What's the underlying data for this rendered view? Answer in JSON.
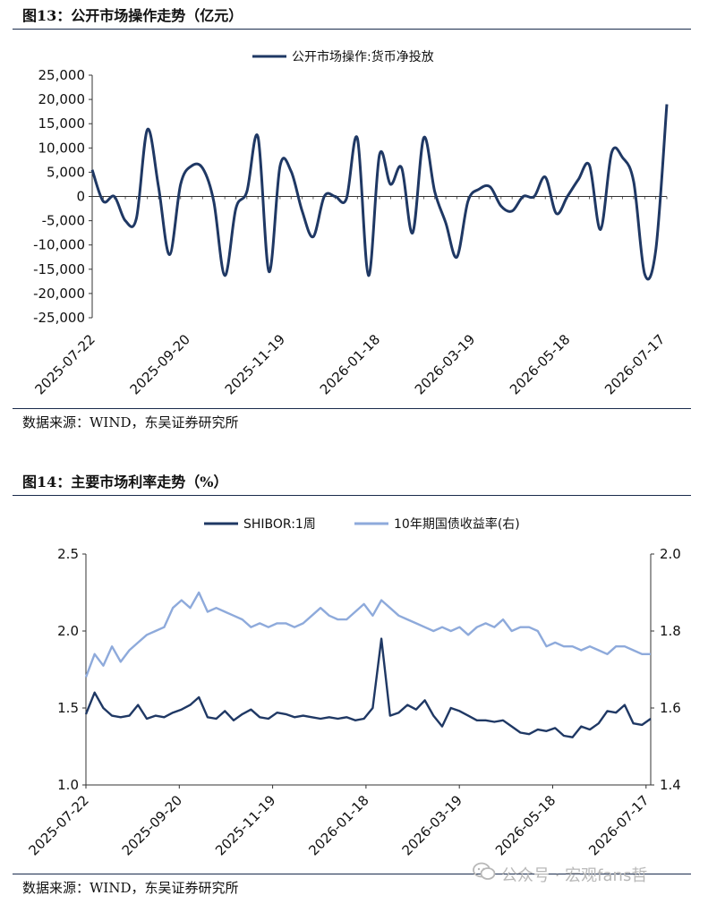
{
  "fig13": {
    "title": "图13：公开市场操作走势（亿元）",
    "source": "数据来源：WIND，东吴证券研究所"
  },
  "fig14": {
    "title": "图14：主要市场利率走势（%）",
    "source": "数据来源：WIND，东吴证券研究所"
  },
  "watermark": {
    "text": "公众号 · 宏观fans哲",
    "icon": "wechat-icon",
    "color": "#b8b8b8"
  },
  "colors": {
    "dark_navy": "#1f3864",
    "light_blue": "#8eaadb",
    "rule": "#1a2b4c"
  },
  "chart_data": [
    {
      "type": "line",
      "xlabel": "",
      "ylabel": "",
      "x_ticks": [
        "2025-07-22",
        "2025-09-20",
        "2025-11-19",
        "2026-01-18",
        "2026-03-19",
        "2026-05-18",
        "2026-07-17"
      ],
      "ylim": [
        -25000,
        25000
      ],
      "y_ticks": [
        -25000,
        -20000,
        -15000,
        -10000,
        -5000,
        0,
        5000,
        10000,
        15000,
        20000,
        25000
      ],
      "y_tick_labels": [
        "-25,000",
        "-20,000",
        "-15,000",
        "-10,000",
        "-5,000",
        "0",
        "5,000",
        "10,000",
        "15,000",
        "20,000",
        "25,000"
      ],
      "legend": "top-center",
      "series": [
        {
          "name": "公开市场操作:货币净投放",
          "color": "#1f3864",
          "x_start": "2025-07-22",
          "x_end": "2026-07-20",
          "values": [
            5500,
            -1000,
            0,
            -5000,
            -4500,
            13800,
            2000,
            -12000,
            2500,
            6300,
            5800,
            -1000,
            -16300,
            -2500,
            1000,
            12300,
            -15500,
            6300,
            5200,
            -3000,
            -8300,
            0,
            0,
            -500,
            12000,
            -16300,
            8600,
            2500,
            5900,
            -7500,
            12100,
            1000,
            -5500,
            -12500,
            -1000,
            1500,
            2000,
            -2000,
            -3000,
            0,
            0,
            4000,
            -3500,
            0,
            3500,
            6400,
            -6800,
            9000,
            8000,
            3000,
            -16000,
            -11000,
            19000
          ]
        }
      ]
    },
    {
      "type": "line",
      "xlabel": "",
      "ylabel": "",
      "x_ticks": [
        "2025-07-22",
        "2025-09-20",
        "2025-11-19",
        "2026-01-18",
        "2026-03-19",
        "2026-05-18",
        "2026-07-17"
      ],
      "ylim": [
        1.0,
        2.5
      ],
      "y_ticks": [
        1.0,
        1.5,
        2.0,
        2.5
      ],
      "y_tick_labels": [
        "1.0",
        "1.5",
        "2.0",
        "2.5"
      ],
      "y2lim": [
        1.4,
        2.0
      ],
      "y2_ticks": [
        1.4,
        1.6,
        1.8,
        2.0
      ],
      "y2_tick_labels": [
        "1.4",
        "1.6",
        "1.8",
        "2.0"
      ],
      "legend": "top-center",
      "series": [
        {
          "name": "SHIBOR:1周",
          "axis": "left",
          "color": "#1f3864",
          "x_start": "2025-07-22",
          "x_end": "2026-07-20",
          "values": [
            1.46,
            1.6,
            1.5,
            1.45,
            1.44,
            1.45,
            1.52,
            1.43,
            1.45,
            1.44,
            1.47,
            1.49,
            1.52,
            1.57,
            1.44,
            1.43,
            1.48,
            1.42,
            1.46,
            1.49,
            1.44,
            1.43,
            1.47,
            1.46,
            1.44,
            1.45,
            1.44,
            1.43,
            1.44,
            1.43,
            1.44,
            1.42,
            1.43,
            1.5,
            1.95,
            1.45,
            1.47,
            1.52,
            1.49,
            1.55,
            1.45,
            1.38,
            1.5,
            1.48,
            1.45,
            1.42,
            1.42,
            1.41,
            1.42,
            1.38,
            1.34,
            1.33,
            1.36,
            1.35,
            1.37,
            1.32,
            1.31,
            1.38,
            1.36,
            1.4,
            1.48,
            1.47,
            1.52,
            1.4,
            1.39,
            1.43
          ]
        },
        {
          "name": "10年期国债收益率(右)",
          "axis": "right",
          "color": "#8eaadb",
          "x_start": "2025-07-22",
          "x_end": "2026-07-20",
          "values": [
            1.68,
            1.74,
            1.71,
            1.76,
            1.72,
            1.75,
            1.77,
            1.79,
            1.8,
            1.81,
            1.86,
            1.88,
            1.86,
            1.9,
            1.85,
            1.86,
            1.85,
            1.84,
            1.83,
            1.81,
            1.82,
            1.81,
            1.82,
            1.82,
            1.81,
            1.82,
            1.84,
            1.86,
            1.84,
            1.83,
            1.83,
            1.85,
            1.87,
            1.84,
            1.88,
            1.86,
            1.84,
            1.83,
            1.82,
            1.81,
            1.8,
            1.81,
            1.8,
            1.81,
            1.79,
            1.81,
            1.82,
            1.81,
            1.83,
            1.8,
            1.81,
            1.81,
            1.8,
            1.76,
            1.77,
            1.76,
            1.76,
            1.75,
            1.76,
            1.75,
            1.74,
            1.76,
            1.76,
            1.75,
            1.74,
            1.74
          ]
        }
      ]
    }
  ]
}
